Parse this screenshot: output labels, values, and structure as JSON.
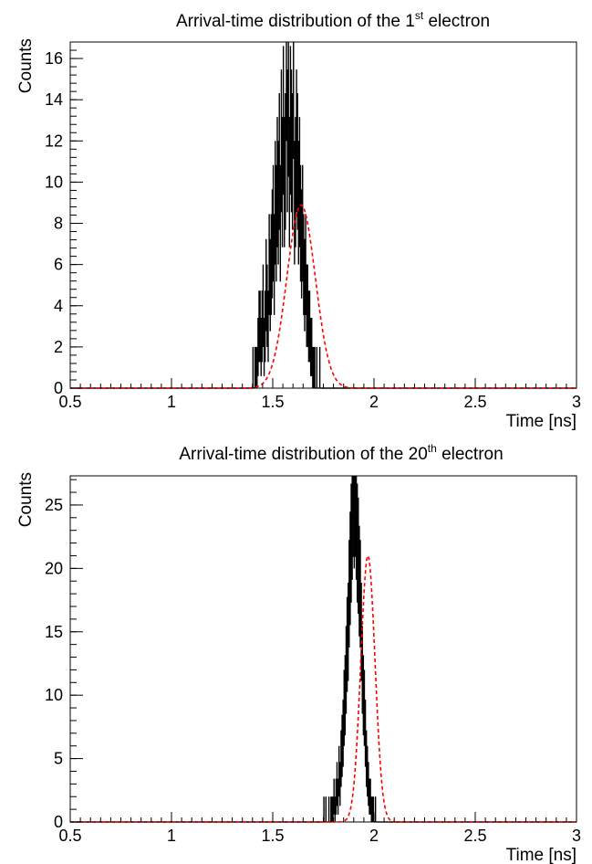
{
  "colors": {
    "histogram": "#000000",
    "fit": "#ff0000",
    "axis": "#000000"
  },
  "chart_data": [
    {
      "type": "bar",
      "title": {
        "text": "Arrival-time distribution of the 1",
        "sup": "st",
        "tail": " electron"
      },
      "xlabel": "Time [ns]",
      "ylabel": "Counts",
      "xlim": [
        0.5,
        3
      ],
      "ylim": [
        0,
        16.8
      ],
      "xticks": [
        0.5,
        1,
        1.5,
        2,
        2.5,
        3
      ],
      "xtick_labels": [
        "0.5",
        "1",
        "1.5",
        "2",
        "2.5",
        "3"
      ],
      "yticks": [
        0,
        2,
        4,
        6,
        8,
        10,
        12,
        14,
        16
      ],
      "ytick_labels": [
        "0",
        "2",
        "4",
        "6",
        "8",
        "10",
        "12",
        "14",
        "16"
      ],
      "grid": false,
      "histogram": {
        "bin_start": 1.4,
        "bin_width": 0.005,
        "counts": [
          1,
          0,
          1,
          1,
          1,
          2,
          3,
          3,
          2,
          3,
          4,
          2,
          3,
          5,
          4,
          3,
          6,
          5,
          6,
          7,
          8,
          6,
          9,
          8,
          10,
          9,
          11,
          8,
          12,
          10,
          13,
          10,
          11,
          16,
          12,
          14,
          10,
          13,
          12,
          11,
          15,
          9,
          10,
          12,
          11,
          9,
          10,
          8,
          7,
          8,
          6,
          5,
          6,
          4,
          4,
          3,
          3,
          2,
          2,
          1,
          1,
          1,
          0,
          1,
          0,
          0,
          1
        ]
      },
      "fit": {
        "type": "gaussian",
        "amplitude": 8.9,
        "mean": 1.64,
        "sigma": 0.07
      }
    },
    {
      "type": "bar",
      "title": {
        "text": "Arrival-time distribution of the 20",
        "sup": "th",
        "tail": " electron"
      },
      "xlabel": "Time [ns]",
      "ylabel": "Counts",
      "xlim": [
        0.5,
        3
      ],
      "ylim": [
        0,
        27.3
      ],
      "xticks": [
        0.5,
        1,
        1.5,
        2,
        2.5,
        3
      ],
      "xtick_labels": [
        "0.5",
        "1",
        "1.5",
        "2",
        "2.5",
        "3"
      ],
      "yticks": [
        0,
        5,
        10,
        15,
        20,
        25
      ],
      "ytick_labels": [
        "0",
        "5",
        "10",
        "15",
        "20",
        "25"
      ],
      "grid": false,
      "histogram": {
        "bin_start": 1.75,
        "bin_width": 0.005,
        "counts": [
          1,
          0,
          1,
          0,
          0,
          1,
          0,
          1,
          1,
          1,
          2,
          1,
          2,
          3,
          2,
          4,
          3,
          5,
          6,
          7,
          9,
          10,
          12,
          14,
          15,
          18,
          20,
          22,
          24,
          26,
          25,
          26,
          24,
          22,
          21,
          19,
          18,
          15,
          12,
          10,
          9,
          7,
          5,
          4,
          3,
          2,
          2,
          1,
          1,
          1,
          0,
          1,
          0,
          0,
          0,
          0,
          0,
          0,
          0,
          0,
          0,
          0,
          0,
          0,
          0,
          0
        ]
      },
      "fit": {
        "type": "gaussian",
        "amplitude": 21.0,
        "mean": 1.97,
        "sigma": 0.035
      }
    }
  ]
}
